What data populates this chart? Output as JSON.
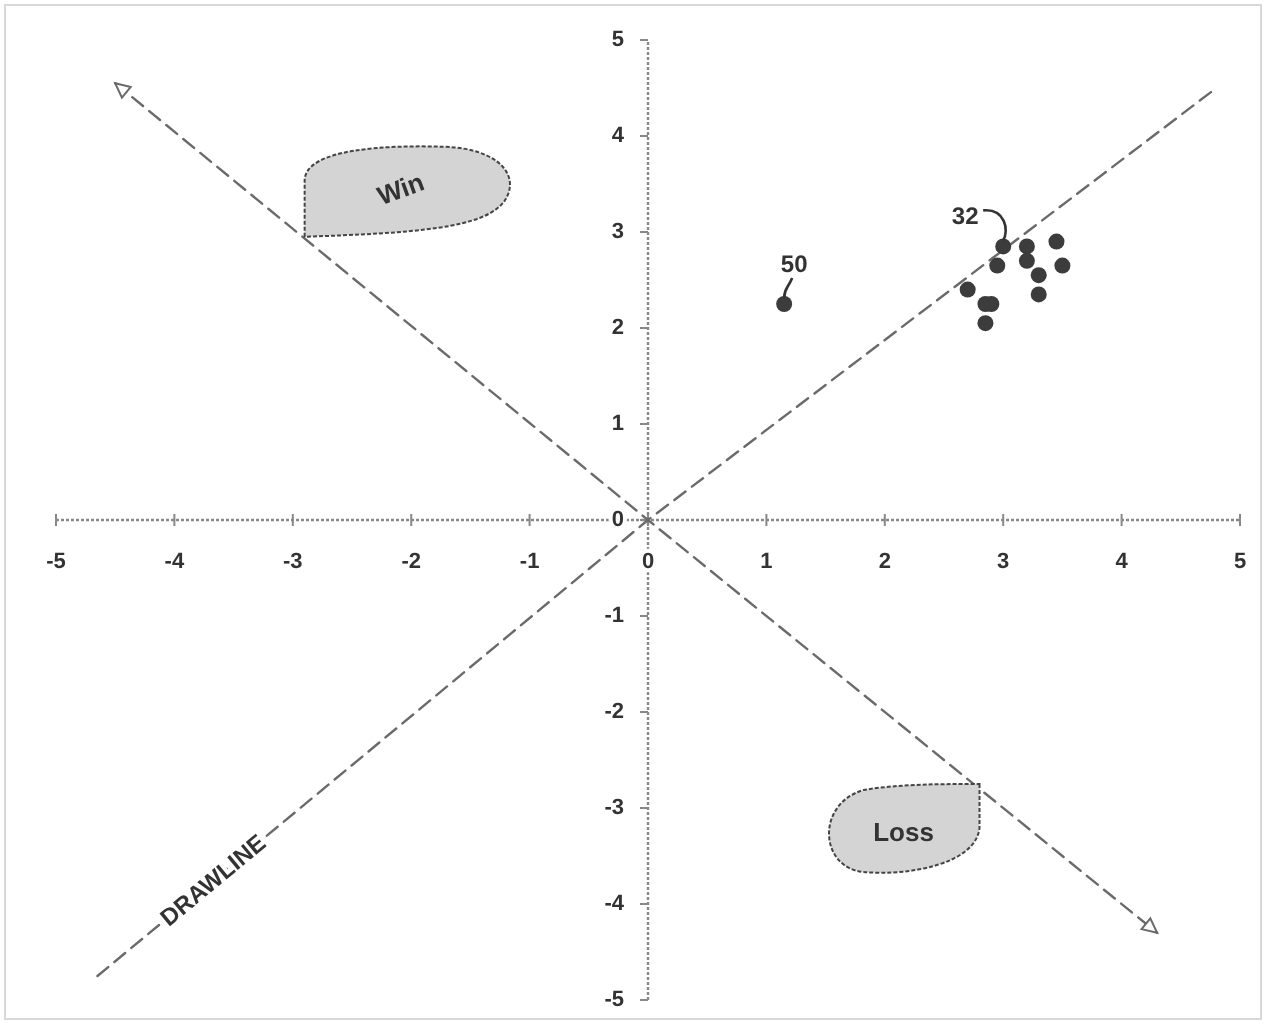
{
  "chart_data": {
    "type": "scatter",
    "xlim": [
      -5,
      5
    ],
    "ylim": [
      -5,
      5
    ],
    "xticks": [
      -5,
      -4,
      -3,
      -2,
      -1,
      0,
      1,
      2,
      3,
      4,
      5
    ],
    "yticks": [
      -5,
      -4,
      -3,
      -2,
      -1,
      0,
      1,
      2,
      3,
      4,
      5
    ],
    "series": [
      {
        "color": "#3c3c3c",
        "marker": "circle",
        "x": [
          1.15,
          3.0,
          3.2,
          3.45,
          2.95,
          3.2,
          3.5,
          3.3,
          2.7,
          3.3,
          2.85,
          2.9,
          2.85
        ],
        "values": [
          2.25,
          2.85,
          2.85,
          2.9,
          2.65,
          2.7,
          2.65,
          2.55,
          2.4,
          2.35,
          2.25,
          2.25,
          2.05
        ]
      },
      {
        "type": "line",
        "name": "DRAWLINE",
        "color": "#6a6a6a",
        "line_style": "dashed",
        "x": [
          -4.65,
          0,
          4.8
        ],
        "values": [
          -4.75,
          0,
          4.5
        ]
      },
      {
        "type": "line",
        "color": "#6a6a6a",
        "line_style": "dashed",
        "x": [
          -4.5,
          0,
          4.3
        ],
        "values": [
          4.55,
          0,
          -4.3
        ]
      }
    ],
    "annotations": [
      {
        "text": "50",
        "x": 1.15,
        "y": 2.25
      },
      {
        "text": "32",
        "x": 3.0,
        "y": 2.85
      },
      {
        "text": "Win",
        "x": -2.9,
        "y": 2.95
      },
      {
        "text": "Loss",
        "x": 2.8,
        "y": -2.75
      }
    ]
  }
}
